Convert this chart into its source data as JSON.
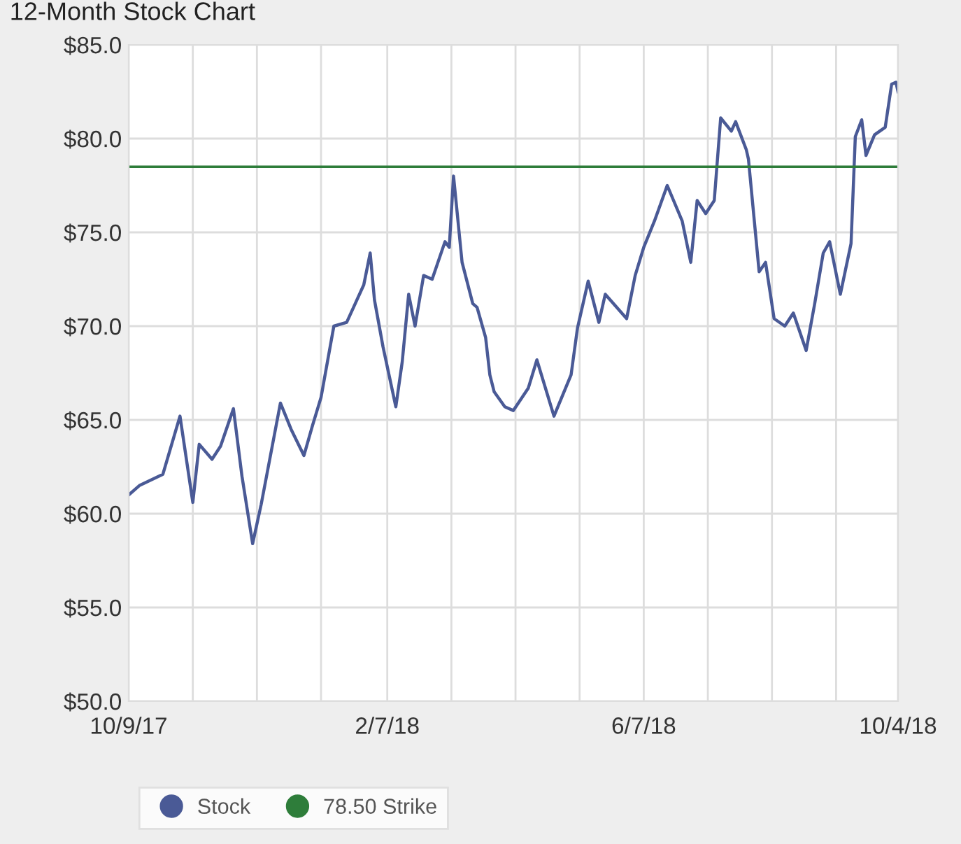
{
  "chart_data": {
    "type": "line",
    "title": "12-Month Stock Chart",
    "x": [
      "2017-10-09",
      "2017-10-14",
      "2017-10-25",
      "2017-11-02",
      "2017-11-08",
      "2017-11-11",
      "2017-11-17",
      "2017-11-21",
      "2017-11-27",
      "2017-12-01",
      "2017-12-06",
      "2017-12-10",
      "2017-12-19",
      "2017-12-24",
      "2017-12-30",
      "2018-01-03",
      "2018-01-07",
      "2018-01-13",
      "2018-01-19",
      "2018-01-23",
      "2018-01-27",
      "2018-01-30",
      "2018-02-01",
      "2018-02-05",
      "2018-02-11",
      "2018-02-14",
      "2018-02-17",
      "2018-02-20",
      "2018-02-24",
      "2018-02-28",
      "2018-03-06",
      "2018-03-08",
      "2018-03-10",
      "2018-03-14",
      "2018-03-19",
      "2018-03-21",
      "2018-03-25",
      "2018-03-27",
      "2018-03-29",
      "2018-04-03",
      "2018-04-07",
      "2018-04-14",
      "2018-04-18",
      "2018-04-26",
      "2018-05-04",
      "2018-05-07",
      "2018-05-12",
      "2018-05-17",
      "2018-05-20",
      "2018-05-30",
      "2018-06-03",
      "2018-06-07",
      "2018-06-12",
      "2018-06-18",
      "2018-06-25",
      "2018-06-29",
      "2018-07-02",
      "2018-07-06",
      "2018-07-10",
      "2018-07-13",
      "2018-07-18",
      "2018-07-20",
      "2018-07-25",
      "2018-07-26",
      "2018-07-31",
      "2018-08-03",
      "2018-08-07",
      "2018-08-12",
      "2018-08-16",
      "2018-08-22",
      "2018-08-26",
      "2018-08-30",
      "2018-09-02",
      "2018-09-07",
      "2018-09-12",
      "2018-09-14",
      "2018-09-17",
      "2018-09-19",
      "2018-09-23",
      "2018-09-28",
      "2018-10-01",
      "2018-10-03",
      "2018-10-04"
    ],
    "series": [
      {
        "name": "Stock",
        "color": "#4a5a96",
        "values": [
          61.0,
          61.5,
          62.1,
          65.2,
          60.6,
          63.7,
          62.9,
          63.6,
          65.6,
          62.0,
          58.4,
          60.5,
          65.9,
          64.5,
          63.1,
          64.7,
          66.2,
          70.0,
          70.2,
          71.2,
          72.2,
          73.9,
          71.4,
          68.9,
          65.7,
          68.1,
          71.7,
          70.0,
          72.7,
          72.5,
          74.5,
          74.2,
          78.0,
          73.4,
          71.2,
          71.0,
          69.4,
          67.4,
          66.5,
          65.7,
          65.5,
          66.7,
          68.2,
          65.2,
          67.4,
          69.9,
          72.4,
          70.2,
          71.7,
          70.4,
          72.7,
          74.2,
          75.6,
          77.5,
          75.6,
          73.4,
          76.7,
          76.0,
          76.7,
          81.1,
          80.4,
          80.9,
          79.4,
          78.9,
          72.9,
          73.4,
          70.4,
          70.0,
          70.7,
          68.7,
          71.2,
          73.9,
          74.5,
          71.7,
          74.4,
          80.1,
          81.0,
          79.1,
          80.2,
          80.6,
          82.9,
          83.0,
          82.5
        ]
      }
    ],
    "ref_lines": [
      {
        "axis": "y",
        "value": 78.5,
        "label": "78.50 Strike",
        "color": "#2e7d3a",
        "line_style": "solid"
      }
    ],
    "xlim": [
      "2017-10-09",
      "2018-10-04"
    ],
    "xticks": [
      {
        "value": "2017-10-09",
        "label": "10/9/17"
      },
      {
        "value": "2017-11-08",
        "label": null
      },
      {
        "value": "2017-12-08",
        "label": null
      },
      {
        "value": "2018-01-07",
        "label": null
      },
      {
        "value": "2018-02-07",
        "label": "2/7/18"
      },
      {
        "value": "2018-03-09",
        "label": null
      },
      {
        "value": "2018-04-08",
        "label": null
      },
      {
        "value": "2018-05-08",
        "label": null
      },
      {
        "value": "2018-06-07",
        "label": "6/7/18"
      },
      {
        "value": "2018-07-07",
        "label": null
      },
      {
        "value": "2018-08-06",
        "label": null
      },
      {
        "value": "2018-09-05",
        "label": null
      },
      {
        "value": "2018-10-04",
        "label": "10/4/18"
      }
    ],
    "ylim": [
      50,
      85
    ],
    "yticks": [
      {
        "value": 50,
        "label": "$50.0"
      },
      {
        "value": 55,
        "label": "$55.0"
      },
      {
        "value": 60,
        "label": "$60.0"
      },
      {
        "value": 65,
        "label": "$65.0"
      },
      {
        "value": 70,
        "label": "$70.0"
      },
      {
        "value": 75,
        "label": "$75.0"
      },
      {
        "value": 80,
        "label": "$80.0"
      },
      {
        "value": 85,
        "label": "$85.0"
      }
    ],
    "grid": true,
    "legend": "bottom",
    "marker": "none",
    "line_style": "solid"
  }
}
